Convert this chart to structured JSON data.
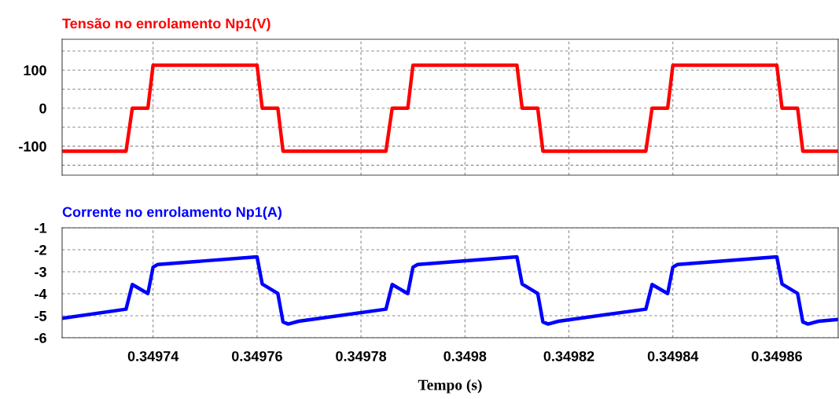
{
  "chart_data": [
    {
      "type": "line",
      "title": "Tensão no enrolamento Np1(V)",
      "xlim": [
        0.3497225,
        0.3498718
      ],
      "xticks": [
        0.34974,
        0.34976,
        0.34978,
        0.3498,
        0.34982,
        0.34984,
        0.34986
      ],
      "ylim": [
        -176,
        181
      ],
      "yticks": [
        {
          "value": -150,
          "label": null
        },
        -100,
        {
          "value": -50,
          "label": null
        },
        0,
        {
          "value": 50,
          "label": null
        },
        100,
        {
          "value": 150,
          "label": null
        }
      ],
      "tick_labels": "y",
      "grid": true,
      "legend": false,
      "x": [
        0.3497225,
        0.3497348,
        0.349736,
        0.349739,
        0.34974,
        0.34976,
        0.349761,
        0.349764,
        0.349765,
        0.3497848,
        0.349786,
        0.349789,
        0.34979,
        0.34981,
        0.349811,
        0.349814,
        0.349815,
        0.3498348,
        0.349836,
        0.349839,
        0.34984,
        0.34986,
        0.349861,
        0.349864,
        0.349865,
        0.3498718
      ],
      "series": [
        {
          "color": "#ff0000",
          "values": [
            -113,
            -113,
            0,
            0,
            113,
            113,
            0,
            0,
            -113,
            -113,
            0,
            0,
            113,
            113,
            0,
            0,
            -113,
            -113,
            0,
            0,
            113,
            113,
            0,
            0,
            -113,
            -113
          ]
        }
      ]
    },
    {
      "type": "line",
      "title": "Corrente no enrolamento Np1(A)",
      "xlabel": "Tempo (s)",
      "xlim": [
        0.3497225,
        0.3498718
      ],
      "xticks": [
        0.34974,
        0.34976,
        0.34978,
        0.3498,
        0.34982,
        0.34984,
        0.34986
      ],
      "ylim": [
        -6,
        -1
      ],
      "yticks": [
        -6,
        -5,
        -4,
        -3,
        -2,
        -1
      ],
      "grid": true,
      "legend": false,
      "x": [
        0.3497225,
        0.3497348,
        0.349736,
        0.349739,
        0.34974,
        0.3497409,
        0.34976,
        0.349761,
        0.349764,
        0.349765,
        0.349766,
        0.349768,
        0.3497848,
        0.349786,
        0.349789,
        0.34979,
        0.3497909,
        0.34981,
        0.349811,
        0.349814,
        0.349815,
        0.349816,
        0.349818,
        0.3498348,
        0.349836,
        0.349839,
        0.34984,
        0.3498409,
        0.34986,
        0.349861,
        0.349864,
        0.349865,
        0.349866,
        0.349868,
        0.3498718
      ],
      "series": [
        {
          "color": "#0000ff",
          "values": [
            -5.12,
            -4.7,
            -3.58,
            -3.99,
            -2.79,
            -2.67,
            -2.32,
            -3.56,
            -3.99,
            -5.28,
            -5.38,
            -5.25,
            -4.7,
            -3.58,
            -3.99,
            -2.79,
            -2.67,
            -2.32,
            -3.56,
            -3.99,
            -5.28,
            -5.38,
            -5.25,
            -4.7,
            -3.58,
            -3.99,
            -2.79,
            -2.67,
            -2.32,
            -3.56,
            -3.99,
            -5.28,
            -5.38,
            -5.25,
            -5.17
          ]
        }
      ]
    }
  ]
}
